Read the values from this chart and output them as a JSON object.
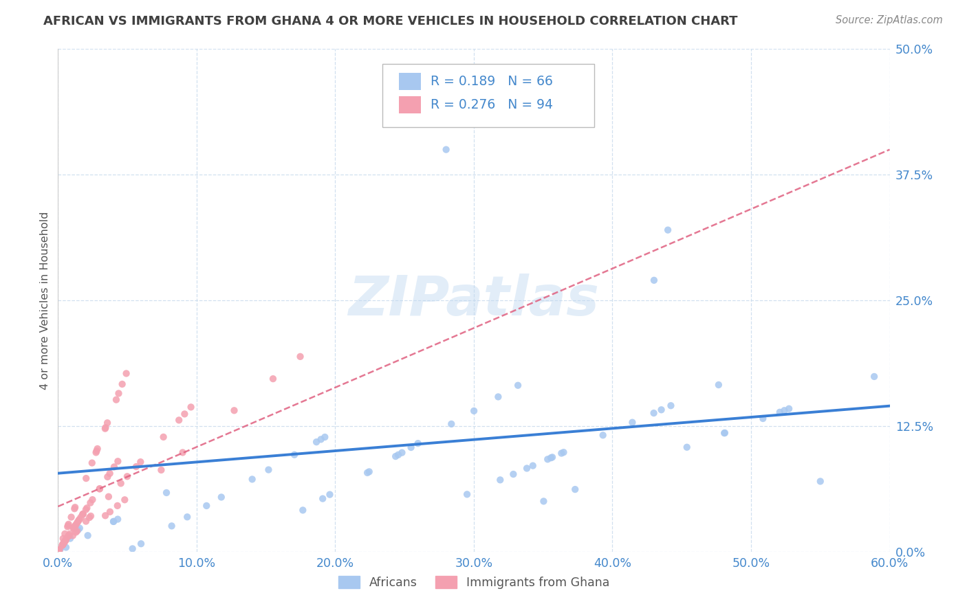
{
  "title": "AFRICAN VS IMMIGRANTS FROM GHANA 4 OR MORE VEHICLES IN HOUSEHOLD CORRELATION CHART",
  "source": "Source: ZipAtlas.com",
  "xlabel_ticks": [
    "0.0%",
    "10.0%",
    "20.0%",
    "30.0%",
    "40.0%",
    "50.0%",
    "60.0%"
  ],
  "ylabel_ticks": [
    "0.0%",
    "12.5%",
    "25.0%",
    "37.5%",
    "50.0%"
  ],
  "ylabel_label": "4 or more Vehicles in Household",
  "legend_labels": [
    "Africans",
    "Immigrants from Ghana"
  ],
  "r_african": 0.189,
  "n_african": 66,
  "r_ghana": 0.276,
  "n_ghana": 94,
  "xlim": [
    0.0,
    0.6
  ],
  "ylim": [
    0.0,
    0.5
  ],
  "african_color": "#a8c8f0",
  "ghana_color": "#f4a0b0",
  "african_line_color": "#3a7fd5",
  "ghana_line_color": "#e06080",
  "title_color": "#404040",
  "source_color": "#888888",
  "tick_color": "#4488cc",
  "grid_color": "#ccddee",
  "watermark_color": "#c0d8f0",
  "legend_text_color": "#4488cc"
}
